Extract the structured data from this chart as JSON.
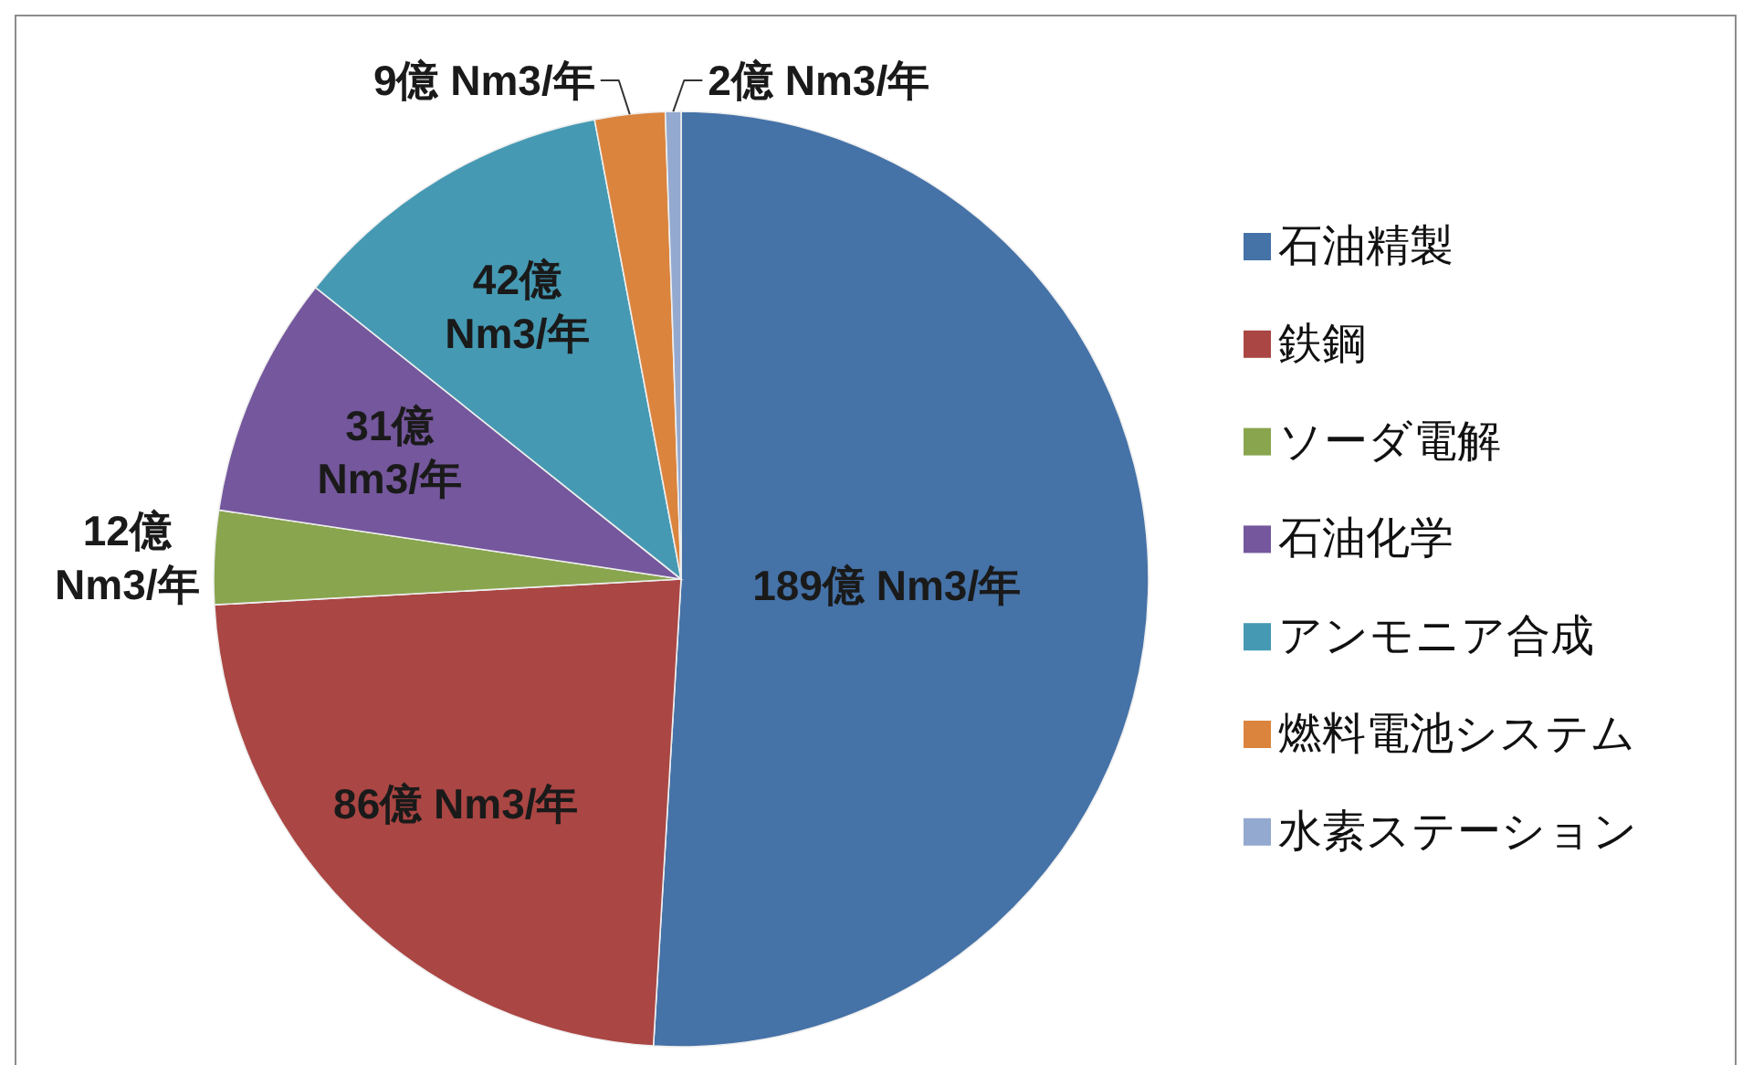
{
  "chart_data": {
    "type": "pie",
    "categories": [
      "石油精製",
      "鉄鋼",
      "ソーダ電解",
      "石油化学",
      "アンモニア合成",
      "燃料電池システム",
      "水素ステーション"
    ],
    "values": [
      189,
      86,
      12,
      31,
      42,
      9,
      2
    ],
    "colors": [
      "#4572a7",
      "#aa4643",
      "#89a54e",
      "#74579c",
      "#4599b3",
      "#db843d",
      "#93a9cf"
    ],
    "value_labels": [
      "189億 Nm3/年",
      "86億 Nm3/年",
      "12億 Nm3/年",
      "31億 Nm3/年",
      "42億 Nm3/年",
      "9億 Nm3/年",
      "2億 Nm3/年"
    ],
    "legend": "right"
  }
}
